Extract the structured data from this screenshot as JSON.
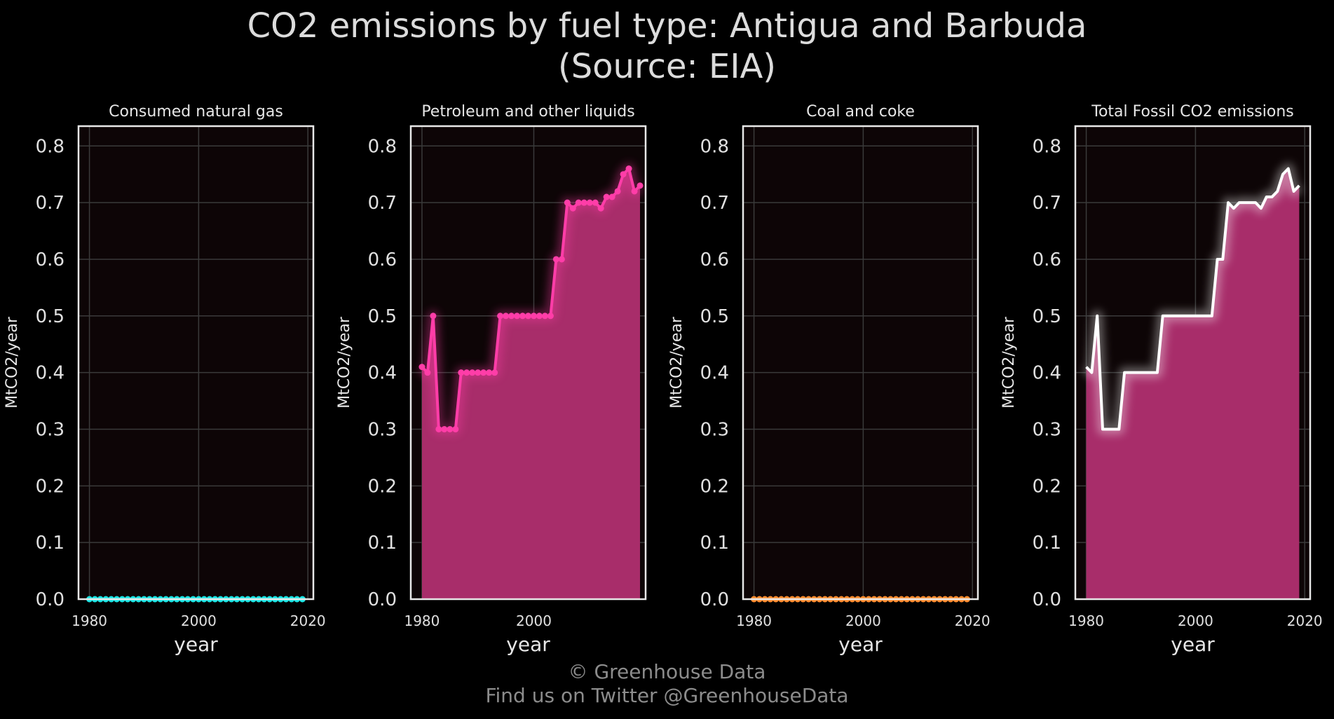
{
  "title": {
    "line1": "CO2 emissions by fuel type: Antigua and Barbuda",
    "line2": "(Source: EIA)"
  },
  "footer": {
    "line1": "© Greenhouse Data",
    "line2": "Find us on Twitter @GreenhouseData"
  },
  "colors": {
    "background": "#000000",
    "plot_background": "#0d0506",
    "grid": "#3a3a3a",
    "frame": "#e8e8e8",
    "gas": "#19e5e5",
    "petroleum_line": "#ff3da8",
    "petroleum_fill": "#a82d6a",
    "coal": "#ff8c2e",
    "total_line": "#ffffff",
    "total_fill": "#a82d6a"
  },
  "chart_data": [
    {
      "type": "line",
      "title": "Consumed natural gas",
      "xlabel": "year",
      "ylabel": "MtCO2/year",
      "xlim": [
        1978,
        2021
      ],
      "ylim": [
        0,
        0.835
      ],
      "xticks": [
        1980,
        2000,
        2020
      ],
      "yticks": [
        "0.0",
        "0.1",
        "0.2",
        "0.3",
        "0.4",
        "0.5",
        "0.6",
        "0.7",
        "0.8"
      ],
      "grid": true,
      "series": [
        {
          "name": "Consumed natural gas",
          "color": "#19e5e5",
          "markers": true,
          "fill": false,
          "x": [
            1980,
            1981,
            1982,
            1983,
            1984,
            1985,
            1986,
            1987,
            1988,
            1989,
            1990,
            1991,
            1992,
            1993,
            1994,
            1995,
            1996,
            1997,
            1998,
            1999,
            2000,
            2001,
            2002,
            2003,
            2004,
            2005,
            2006,
            2007,
            2008,
            2009,
            2010,
            2011,
            2012,
            2013,
            2014,
            2015,
            2016,
            2017,
            2018,
            2019
          ],
          "y": [
            0,
            0,
            0,
            0,
            0,
            0,
            0,
            0,
            0,
            0,
            0,
            0,
            0,
            0,
            0,
            0,
            0,
            0,
            0,
            0,
            0,
            0,
            0,
            0,
            0,
            0,
            0,
            0,
            0,
            0,
            0,
            0,
            0,
            0,
            0,
            0,
            0,
            0,
            0,
            0
          ]
        }
      ]
    },
    {
      "type": "area",
      "title": "Petroleum and other liquids",
      "xlabel": "year",
      "ylabel": "MtCO2/year",
      "xlim": [
        1978,
        2020
      ],
      "ylim": [
        0,
        0.835
      ],
      "xticks": [
        1980,
        2000
      ],
      "yticks": [
        "0.0",
        "0.1",
        "0.2",
        "0.3",
        "0.4",
        "0.5",
        "0.6",
        "0.7",
        "0.8"
      ],
      "grid": true,
      "series": [
        {
          "name": "Petroleum and other liquids",
          "color": "#ff3da8",
          "fill_color": "#a82d6a",
          "markers": true,
          "fill": true,
          "x": [
            1980,
            1981,
            1982,
            1983,
            1984,
            1985,
            1986,
            1987,
            1988,
            1989,
            1990,
            1991,
            1992,
            1993,
            1994,
            1995,
            1996,
            1997,
            1998,
            1999,
            2000,
            2001,
            2002,
            2003,
            2004,
            2005,
            2006,
            2007,
            2008,
            2009,
            2010,
            2011,
            2012,
            2013,
            2014,
            2015,
            2016,
            2017,
            2018,
            2019
          ],
          "y": [
            0.41,
            0.4,
            0.5,
            0.3,
            0.3,
            0.3,
            0.3,
            0.4,
            0.4,
            0.4,
            0.4,
            0.4,
            0.4,
            0.4,
            0.5,
            0.5,
            0.5,
            0.5,
            0.5,
            0.5,
            0.5,
            0.5,
            0.5,
            0.5,
            0.6,
            0.6,
            0.7,
            0.69,
            0.7,
            0.7,
            0.7,
            0.7,
            0.69,
            0.71,
            0.71,
            0.72,
            0.75,
            0.76,
            0.72,
            0.73
          ]
        }
      ]
    },
    {
      "type": "line",
      "title": "Coal and coke",
      "xlabel": "year",
      "ylabel": "MtCO2/year",
      "xlim": [
        1978,
        2021
      ],
      "ylim": [
        0,
        0.835
      ],
      "xticks": [
        1980,
        2000,
        2020
      ],
      "yticks": [
        "0.0",
        "0.1",
        "0.2",
        "0.3",
        "0.4",
        "0.5",
        "0.6",
        "0.7",
        "0.8"
      ],
      "grid": true,
      "series": [
        {
          "name": "Coal and coke",
          "color": "#ff8c2e",
          "markers": true,
          "fill": false,
          "x": [
            1980,
            1981,
            1982,
            1983,
            1984,
            1985,
            1986,
            1987,
            1988,
            1989,
            1990,
            1991,
            1992,
            1993,
            1994,
            1995,
            1996,
            1997,
            1998,
            1999,
            2000,
            2001,
            2002,
            2003,
            2004,
            2005,
            2006,
            2007,
            2008,
            2009,
            2010,
            2011,
            2012,
            2013,
            2014,
            2015,
            2016,
            2017,
            2018,
            2019
          ],
          "y": [
            0,
            0,
            0,
            0,
            0,
            0,
            0,
            0,
            0,
            0,
            0,
            0,
            0,
            0,
            0,
            0,
            0,
            0,
            0,
            0,
            0,
            0,
            0,
            0,
            0,
            0,
            0,
            0,
            0,
            0,
            0,
            0,
            0,
            0,
            0,
            0,
            0,
            0,
            0,
            0
          ]
        }
      ]
    },
    {
      "type": "area",
      "title": "Total Fossil CO2 emissions",
      "xlabel": "year",
      "ylabel": "MtCO2/year",
      "xlim": [
        1978,
        2021
      ],
      "ylim": [
        0,
        0.835
      ],
      "xticks": [
        1980,
        2000,
        2020
      ],
      "yticks": [
        "0.0",
        "0.1",
        "0.2",
        "0.3",
        "0.4",
        "0.5",
        "0.6",
        "0.7",
        "0.8"
      ],
      "grid": true,
      "series": [
        {
          "name": "Total Fossil CO2 emissions",
          "color": "#ffffff",
          "fill_color": "#a82d6a",
          "markers": false,
          "fill": true,
          "x": [
            1980,
            1981,
            1982,
            1983,
            1984,
            1985,
            1986,
            1987,
            1988,
            1989,
            1990,
            1991,
            1992,
            1993,
            1994,
            1995,
            1996,
            1997,
            1998,
            1999,
            2000,
            2001,
            2002,
            2003,
            2004,
            2005,
            2006,
            2007,
            2008,
            2009,
            2010,
            2011,
            2012,
            2013,
            2014,
            2015,
            2016,
            2017,
            2018,
            2019
          ],
          "y": [
            0.41,
            0.4,
            0.5,
            0.3,
            0.3,
            0.3,
            0.3,
            0.4,
            0.4,
            0.4,
            0.4,
            0.4,
            0.4,
            0.4,
            0.5,
            0.5,
            0.5,
            0.5,
            0.5,
            0.5,
            0.5,
            0.5,
            0.5,
            0.5,
            0.6,
            0.6,
            0.7,
            0.69,
            0.7,
            0.7,
            0.7,
            0.7,
            0.69,
            0.71,
            0.71,
            0.72,
            0.75,
            0.76,
            0.72,
            0.73
          ]
        }
      ]
    }
  ]
}
